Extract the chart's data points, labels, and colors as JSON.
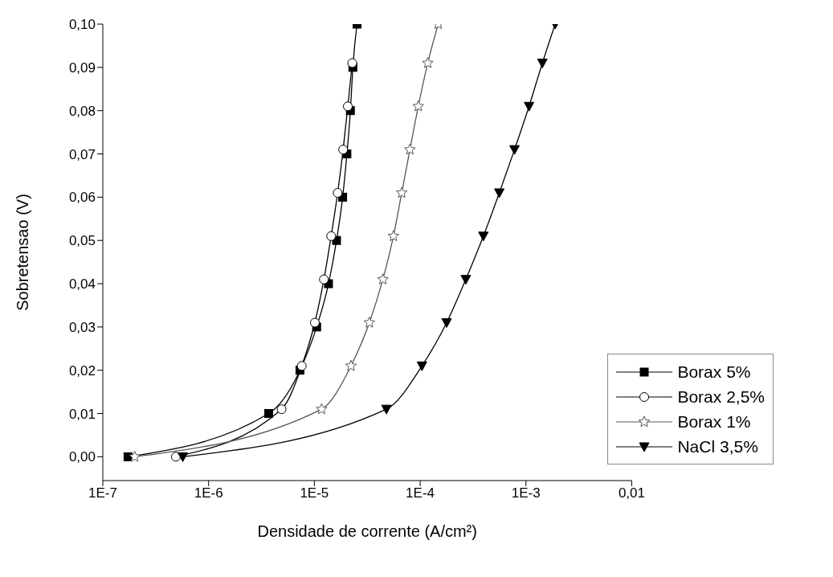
{
  "chart_data": {
    "type": "line",
    "xlabel": "Densidade de corrente (A/cm²)",
    "ylabel": "Sobretensao (V)",
    "log": "x",
    "legend": "bottom right",
    "xlim": [
      1e-07,
      0.01
    ],
    "ylim": [
      -0.0055,
      0.1
    ],
    "xticks": [
      {
        "value": 1e-07,
        "label": "1E-7"
      },
      {
        "value": 1e-06,
        "label": "1E-6"
      },
      {
        "value": 1e-05,
        "label": "1E-5"
      },
      {
        "value": 0.0001,
        "label": "1E-4"
      },
      {
        "value": 0.001,
        "label": "1E-3"
      },
      {
        "value": 0.01,
        "label": "0,01"
      }
    ],
    "yticks": [
      {
        "value": 0,
        "label": "0,00"
      },
      {
        "value": 0.01,
        "label": "0,01"
      },
      {
        "value": 0.02,
        "label": "0,02"
      },
      {
        "value": 0.03,
        "label": "0,03"
      },
      {
        "value": 0.04,
        "label": "0,04"
      },
      {
        "value": 0.05,
        "label": "0,05"
      },
      {
        "value": 0.06,
        "label": "0,06"
      },
      {
        "value": 0.07,
        "label": "0,07"
      },
      {
        "value": 0.08,
        "label": "0,08"
      },
      {
        "value": 0.09,
        "label": "0,09"
      },
      {
        "value": 0.1,
        "label": "0,10"
      }
    ],
    "series": [
      {
        "name": "Borax 5%",
        "color": "#000000",
        "marker": "square",
        "x": [
          1.73e-07,
          3.7e-06,
          7.3e-06,
          1.05e-05,
          1.36e-05,
          1.62e-05,
          1.85e-05,
          2.03e-05,
          2.19e-05,
          2.31e-05,
          2.53e-05
        ],
        "values": [
          0,
          0.01,
          0.02,
          0.03,
          0.04,
          0.05,
          0.06,
          0.07,
          0.08,
          0.09,
          0.1
        ]
      },
      {
        "name": "Borax 2,5%",
        "color": "#000000",
        "marker": "circle",
        "x": [
          4.9e-07,
          4.9e-06,
          7.6e-06,
          1.01e-05,
          1.23e-05,
          1.44e-05,
          1.66e-05,
          1.87e-05,
          2.07e-05,
          2.28e-05
        ],
        "values": [
          0,
          0.011,
          0.021,
          0.031,
          0.041,
          0.051,
          0.061,
          0.071,
          0.081,
          0.091
        ]
      },
      {
        "name": "Borax 1%",
        "color": "#555555",
        "marker": "star",
        "x": [
          2e-07,
          1.17e-05,
          2.22e-05,
          3.31e-05,
          4.44e-05,
          5.59e-05,
          6.7e-05,
          8e-05,
          9.6e-05,
          0.000118,
          0.000148
        ],
        "values": [
          0,
          0.011,
          0.021,
          0.031,
          0.041,
          0.051,
          0.061,
          0.071,
          0.081,
          0.091,
          0.1
        ]
      },
      {
        "name": "NaCl 3,5%",
        "color": "#000000",
        "marker": "triangle",
        "x": [
          5.7e-07,
          4.8e-05,
          0.000104,
          0.000178,
          0.00027,
          0.000396,
          0.00056,
          0.00078,
          0.00107,
          0.00143,
          0.00189
        ],
        "values": [
          0,
          0.011,
          0.021,
          0.031,
          0.041,
          0.051,
          0.061,
          0.071,
          0.081,
          0.091,
          0.1
        ]
      }
    ]
  }
}
